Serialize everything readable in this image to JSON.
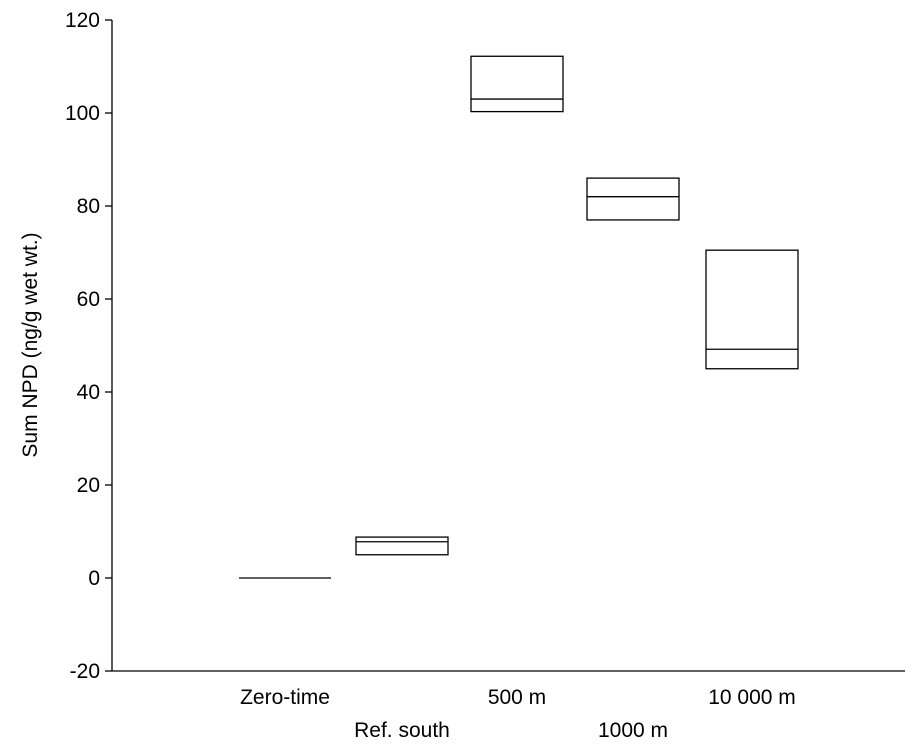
{
  "chart_data": {
    "type": "box",
    "title": "",
    "xlabel": "",
    "ylabel": "Sum NPD (ng/g wet wt.)",
    "ylim": [
      -20,
      120
    ],
    "yticks": [
      -20,
      0,
      20,
      40,
      60,
      80,
      100,
      120
    ],
    "ytick_labels": [
      "-20",
      "0",
      "20",
      "40",
      "60",
      "80",
      "100",
      "120"
    ],
    "grid": false,
    "legend": "none",
    "categories": [
      "Zero-time",
      "Ref. south",
      "500 m",
      "1000 m",
      "10 000 m"
    ],
    "boxes": [
      {
        "category": "Zero-time",
        "q1": 0,
        "median": 0,
        "q3": 0
      },
      {
        "category": "Ref. south",
        "q1": 5,
        "median": 7.8,
        "q3": 8.8
      },
      {
        "category": "500 m",
        "q1": 100.3,
        "median": 103,
        "q3": 112.2
      },
      {
        "category": "1000 m",
        "q1": 77,
        "median": 82,
        "q3": 86
      },
      {
        "category": "10 000 m",
        "q1": 45,
        "median": 49.2,
        "q3": 70.5
      }
    ]
  }
}
